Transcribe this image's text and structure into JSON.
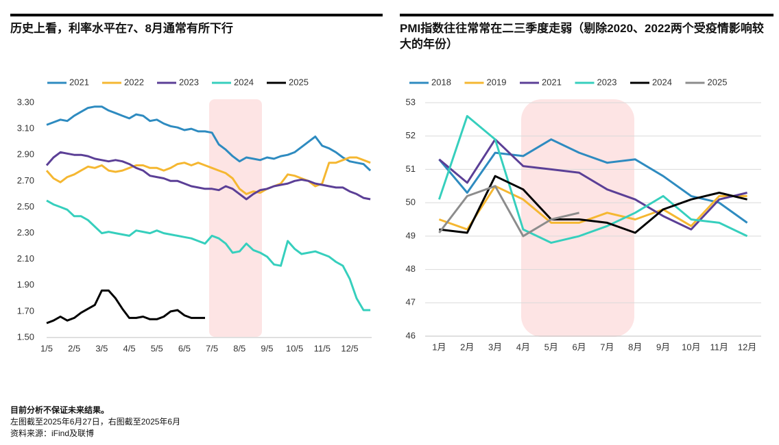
{
  "chart_data": [
    {
      "type": "line",
      "title": "历史上看，利率水平在7、8月通常有所下行",
      "categories": [
        "1/5",
        null,
        null,
        null,
        "2/5",
        null,
        null,
        null,
        "3/5",
        null,
        null,
        null,
        "4/5",
        null,
        null,
        null,
        "5/5",
        null,
        null,
        null,
        "6/5",
        null,
        null,
        null,
        "7/5",
        null,
        null,
        null,
        "8/5",
        null,
        null,
        null,
        "9/5",
        null,
        null,
        null,
        "10/5",
        null,
        null,
        null,
        "11/5",
        null,
        null,
        null,
        "12/5",
        null,
        null,
        null
      ],
      "series": [
        {
          "name": "2021",
          "color": "#2e8bc0",
          "values": [
            3.13,
            3.15,
            3.17,
            3.16,
            3.2,
            3.23,
            3.26,
            3.27,
            3.27,
            3.24,
            3.22,
            3.2,
            3.18,
            3.21,
            3.2,
            3.16,
            3.17,
            3.14,
            3.12,
            3.11,
            3.09,
            3.1,
            3.08,
            3.08,
            3.07,
            2.98,
            2.94,
            2.89,
            2.85,
            2.88,
            2.87,
            2.86,
            2.88,
            2.87,
            2.89,
            2.9,
            2.92,
            2.96,
            3.0,
            3.04,
            2.97,
            2.95,
            2.92,
            2.88,
            2.85,
            2.84,
            2.83,
            2.78
          ]
        },
        {
          "name": "2022",
          "color": "#f5b731",
          "values": [
            2.78,
            2.72,
            2.69,
            2.73,
            2.75,
            2.78,
            2.81,
            2.8,
            2.82,
            2.78,
            2.77,
            2.78,
            2.8,
            2.82,
            2.82,
            2.8,
            2.8,
            2.78,
            2.8,
            2.83,
            2.84,
            2.82,
            2.84,
            2.82,
            2.8,
            2.78,
            2.76,
            2.72,
            2.64,
            2.6,
            2.62,
            2.61,
            2.64,
            2.66,
            2.68,
            2.75,
            2.74,
            2.72,
            2.7,
            2.66,
            2.68,
            2.84,
            2.84,
            2.86,
            2.88,
            2.88,
            2.86,
            2.84
          ]
        },
        {
          "name": "2023",
          "color": "#5b3f96",
          "values": [
            2.82,
            2.88,
            2.92,
            2.91,
            2.9,
            2.9,
            2.89,
            2.87,
            2.86,
            2.85,
            2.86,
            2.85,
            2.83,
            2.8,
            2.78,
            2.74,
            2.73,
            2.72,
            2.7,
            2.7,
            2.68,
            2.66,
            2.65,
            2.64,
            2.64,
            2.63,
            2.66,
            2.64,
            2.6,
            2.56,
            2.6,
            2.63,
            2.64,
            2.66,
            2.67,
            2.68,
            2.7,
            2.71,
            2.7,
            2.68,
            2.67,
            2.66,
            2.65,
            2.65,
            2.62,
            2.6,
            2.57,
            2.56
          ]
        },
        {
          "name": "2024",
          "color": "#36cfbd",
          "values": [
            2.55,
            2.52,
            2.5,
            2.48,
            2.43,
            2.43,
            2.4,
            2.35,
            2.3,
            2.31,
            2.3,
            2.29,
            2.28,
            2.32,
            2.31,
            2.3,
            2.32,
            2.3,
            2.29,
            2.28,
            2.27,
            2.26,
            2.24,
            2.22,
            2.28,
            2.26,
            2.22,
            2.15,
            2.16,
            2.22,
            2.17,
            2.15,
            2.12,
            2.06,
            2.05,
            2.24,
            2.18,
            2.14,
            2.15,
            2.16,
            2.14,
            2.12,
            2.08,
            2.05,
            1.95,
            1.8,
            1.71,
            1.71
          ]
        },
        {
          "name": "2025",
          "color": "#000000",
          "values": [
            1.61,
            1.63,
            1.66,
            1.63,
            1.65,
            1.69,
            1.72,
            1.75,
            1.86,
            1.86,
            1.8,
            1.72,
            1.65,
            1.65,
            1.66,
            1.64,
            1.64,
            1.66,
            1.7,
            1.71,
            1.67,
            1.65,
            1.65,
            1.65,
            null,
            null,
            null,
            null,
            null,
            null,
            null,
            null,
            null,
            null,
            null,
            null,
            null,
            null,
            null,
            null,
            null,
            null,
            null,
            null,
            null,
            null,
            null,
            null
          ]
        }
      ],
      "ylim": [
        1.5,
        3.3
      ],
      "yticks": [
        {
          "value": 1.5,
          "label": "1.50"
        },
        {
          "value": 1.7,
          "label": "1.70"
        },
        {
          "value": 1.9,
          "label": "1.90"
        },
        {
          "value": 2.1,
          "label": "2.10"
        },
        {
          "value": 2.3,
          "label": "2.30"
        },
        {
          "value": 2.5,
          "label": "2.50"
        },
        {
          "value": 2.7,
          "label": "2.70"
        },
        {
          "value": 2.9,
          "label": "2.90"
        },
        {
          "value": 3.1,
          "label": "3.10"
        },
        {
          "value": 3.3,
          "label": "3.30"
        }
      ],
      "grid": false,
      "legend": "top"
    },
    {
      "type": "line",
      "title": "PMI指数往往常常在二三季度走弱（剔除2020、2022两个受疫情影响较大的年份）",
      "categories": [
        "1月",
        "2月",
        "3月",
        "4月",
        "5月",
        "6月",
        "7月",
        "8月",
        "9月",
        "10月",
        "11月",
        "12月"
      ],
      "series": [
        {
          "name": "2018",
          "color": "#2e8bc0",
          "values": [
            51.3,
            50.3,
            51.5,
            51.4,
            51.9,
            51.5,
            51.2,
            51.3,
            50.8,
            50.2,
            50.0,
            49.4
          ]
        },
        {
          "name": "2019",
          "color": "#f5b731",
          "values": [
            49.5,
            49.2,
            50.5,
            50.1,
            49.4,
            49.4,
            49.7,
            49.5,
            49.8,
            49.3,
            50.2,
            50.2
          ]
        },
        {
          "name": "2021",
          "color": "#5b3f96",
          "values": [
            51.3,
            50.6,
            51.9,
            51.1,
            51.0,
            50.9,
            50.4,
            50.1,
            49.6,
            49.2,
            50.1,
            50.3
          ]
        },
        {
          "name": "2023",
          "color": "#36cfbd",
          "values": [
            50.1,
            52.6,
            51.9,
            49.2,
            48.8,
            49.0,
            49.3,
            49.7,
            50.2,
            49.5,
            49.4,
            49.0
          ]
        },
        {
          "name": "2024",
          "color": "#000000",
          "values": [
            49.2,
            49.1,
            50.8,
            50.4,
            49.5,
            49.5,
            49.4,
            49.1,
            49.8,
            50.1,
            50.3,
            50.1
          ]
        },
        {
          "name": "2025",
          "color": "#8c8c8c",
          "values": [
            49.1,
            50.2,
            50.5,
            49.0,
            49.5,
            49.7,
            null,
            null,
            null,
            null,
            null,
            null
          ]
        }
      ],
      "ylim": [
        46,
        53
      ],
      "yticks": [
        46,
        47,
        48,
        49,
        50,
        51,
        52,
        53
      ],
      "grid": true,
      "legend": "top"
    }
  ],
  "footnotes": [
    "目前分析不保证未来结果。",
    "左图截至2025年6月27日，右图截至2025年6月",
    "资料来源：iFind及联博"
  ]
}
